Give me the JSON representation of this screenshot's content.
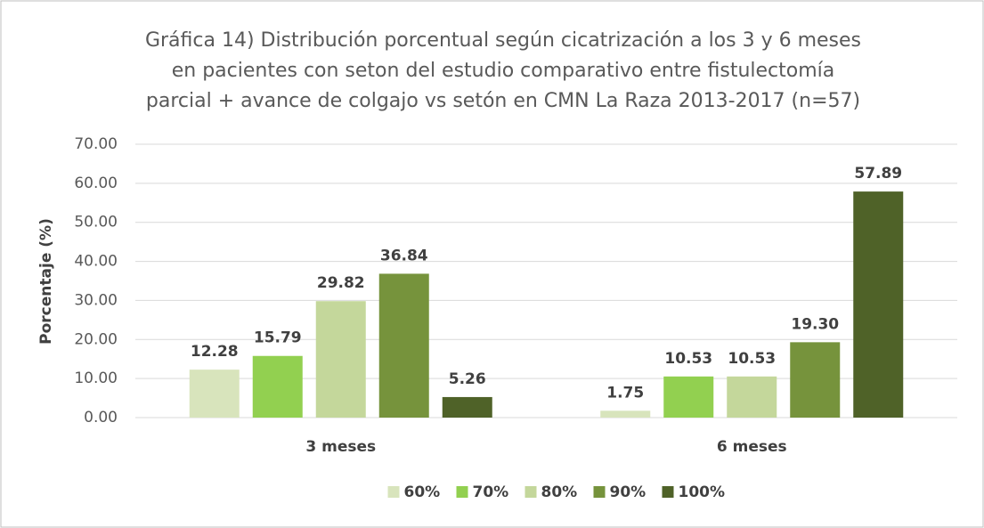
{
  "chart_data": {
    "type": "bar",
    "title": [
      "Gráfica 14) Distribución porcentual según cicatrización a los 3 y 6 meses",
      "en pacientes con seton del estudio comparativo entre fistulectomía",
      "parcial + avance de colgajo vs setón en CMN La Raza 2013-2017 (n=57)"
    ],
    "y_label": "Porcentaje (%)",
    "categories": [
      "3 meses",
      "6 meses"
    ],
    "series": [
      {
        "name": "60%",
        "color": "#d8e4bc",
        "values": [
          12.28,
          1.75
        ],
        "value_labels": [
          "12.28",
          "1.75"
        ]
      },
      {
        "name": "70%",
        "color": "#92d050",
        "values": [
          15.79,
          10.53
        ],
        "value_labels": [
          "15.79",
          "10.53"
        ]
      },
      {
        "name": "80%",
        "color": "#c4d79b",
        "values": [
          29.82,
          10.53
        ],
        "value_labels": [
          "29.82",
          "10.53"
        ]
      },
      {
        "name": "90%",
        "color": "#76933c",
        "values": [
          36.84,
          19.3
        ],
        "value_labels": [
          "36.84",
          "19.30"
        ]
      },
      {
        "name": "100%",
        "color": "#4f6228",
        "values": [
          5.26,
          57.89
        ],
        "value_labels": [
          "5.26",
          "57.89"
        ]
      }
    ],
    "ylim": [
      0,
      70
    ],
    "yticks": [
      {
        "value": 0,
        "label": "0.00"
      },
      {
        "value": 10,
        "label": "10.00"
      },
      {
        "value": 20,
        "label": "20.00"
      },
      {
        "value": 30,
        "label": "30.00"
      },
      {
        "value": 40,
        "label": "40.00"
      },
      {
        "value": 50,
        "label": "50.00"
      },
      {
        "value": 60,
        "label": "60.00"
      },
      {
        "value": 70,
        "label": "70.00"
      }
    ],
    "grid": true,
    "legend": "bottom"
  }
}
